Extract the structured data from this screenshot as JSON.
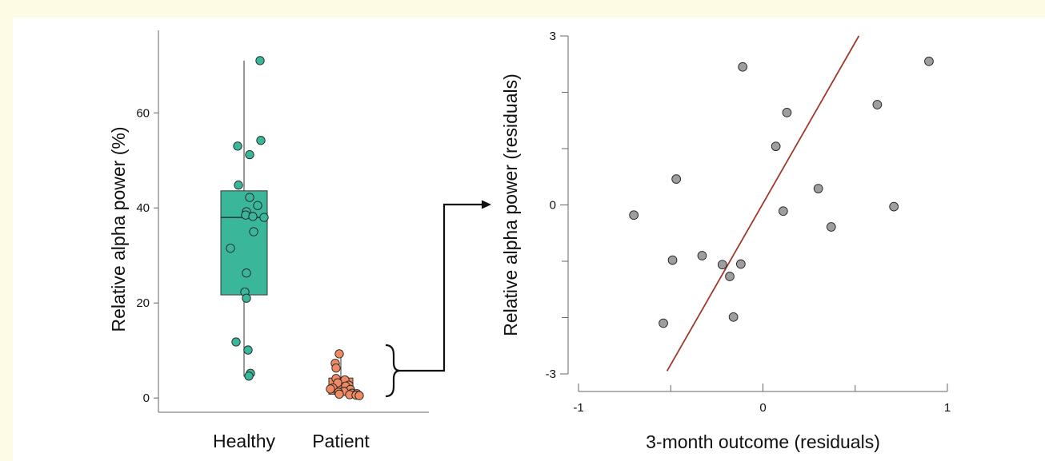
{
  "background_color": "#fdfbe3",
  "chart_data": [
    {
      "type": "box",
      "ylabel": "Relative alpha power (%)",
      "ylim": [
        -3,
        74
      ],
      "yticks": [
        0,
        20,
        40,
        60
      ],
      "categories": [
        "Healthy",
        "Patient"
      ],
      "colors": {
        "Healthy": "#3ab79a",
        "Patient": "#ef8a62"
      },
      "boxes": [
        {
          "category": "Healthy",
          "min": 4.5,
          "q1": 21.7,
          "median": 38.0,
          "q3": 43.6,
          "max": 71
        },
        {
          "category": "Patient",
          "min": 0.5,
          "q1": 0.8,
          "median": 2.0,
          "q3": 4.2,
          "max": 9.3
        }
      ],
      "points": {
        "Healthy": [
          71,
          54.2,
          53,
          51.2,
          44.8,
          42.2,
          40.5,
          39.2,
          38.5,
          38.2,
          38.0,
          35,
          31.5,
          26.3,
          22.3,
          21,
          11.8,
          10.1,
          5.2,
          4.6
        ],
        "Patient": [
          9.3,
          7.3,
          6.3,
          4.1,
          3.8,
          3.2,
          2.7,
          2.5,
          2.1,
          1.9,
          1.8,
          1.4,
          1.2,
          1.0,
          0.9,
          0.8,
          0.7,
          0.6,
          0.5
        ]
      }
    },
    {
      "type": "scatter",
      "xlabel": "3-month outcome (residuals)",
      "ylabel": "Relative alpha power (residuals)",
      "xlim": [
        -1,
        1
      ],
      "ylim": [
        -3,
        3
      ],
      "xticks": [
        -1,
        0,
        1
      ],
      "yticks": [
        -3,
        0,
        3
      ],
      "point_color": "#9e9e9e",
      "line_color": "#a0392b",
      "fit_line": {
        "x": [
          -0.52,
          0.52
        ],
        "y": [
          -2.95,
          3.0
        ]
      },
      "points": [
        {
          "x": -0.11,
          "y": 2.45
        },
        {
          "x": 0.9,
          "y": 2.55
        },
        {
          "x": 0.62,
          "y": 1.78
        },
        {
          "x": 0.13,
          "y": 1.64
        },
        {
          "x": 0.07,
          "y": 1.04
        },
        {
          "x": -0.47,
          "y": 0.46
        },
        {
          "x": 0.3,
          "y": 0.29
        },
        {
          "x": 0.71,
          "y": -0.03
        },
        {
          "x": 0.11,
          "y": -0.11
        },
        {
          "x": -0.7,
          "y": -0.18
        },
        {
          "x": 0.37,
          "y": -0.39
        },
        {
          "x": -0.33,
          "y": -0.9
        },
        {
          "x": -0.49,
          "y": -0.98
        },
        {
          "x": -0.22,
          "y": -1.06
        },
        {
          "x": -0.12,
          "y": -1.05
        },
        {
          "x": -0.18,
          "y": -1.27
        },
        {
          "x": -0.54,
          "y": -2.1
        },
        {
          "x": -0.16,
          "y": -1.99
        }
      ]
    }
  ]
}
